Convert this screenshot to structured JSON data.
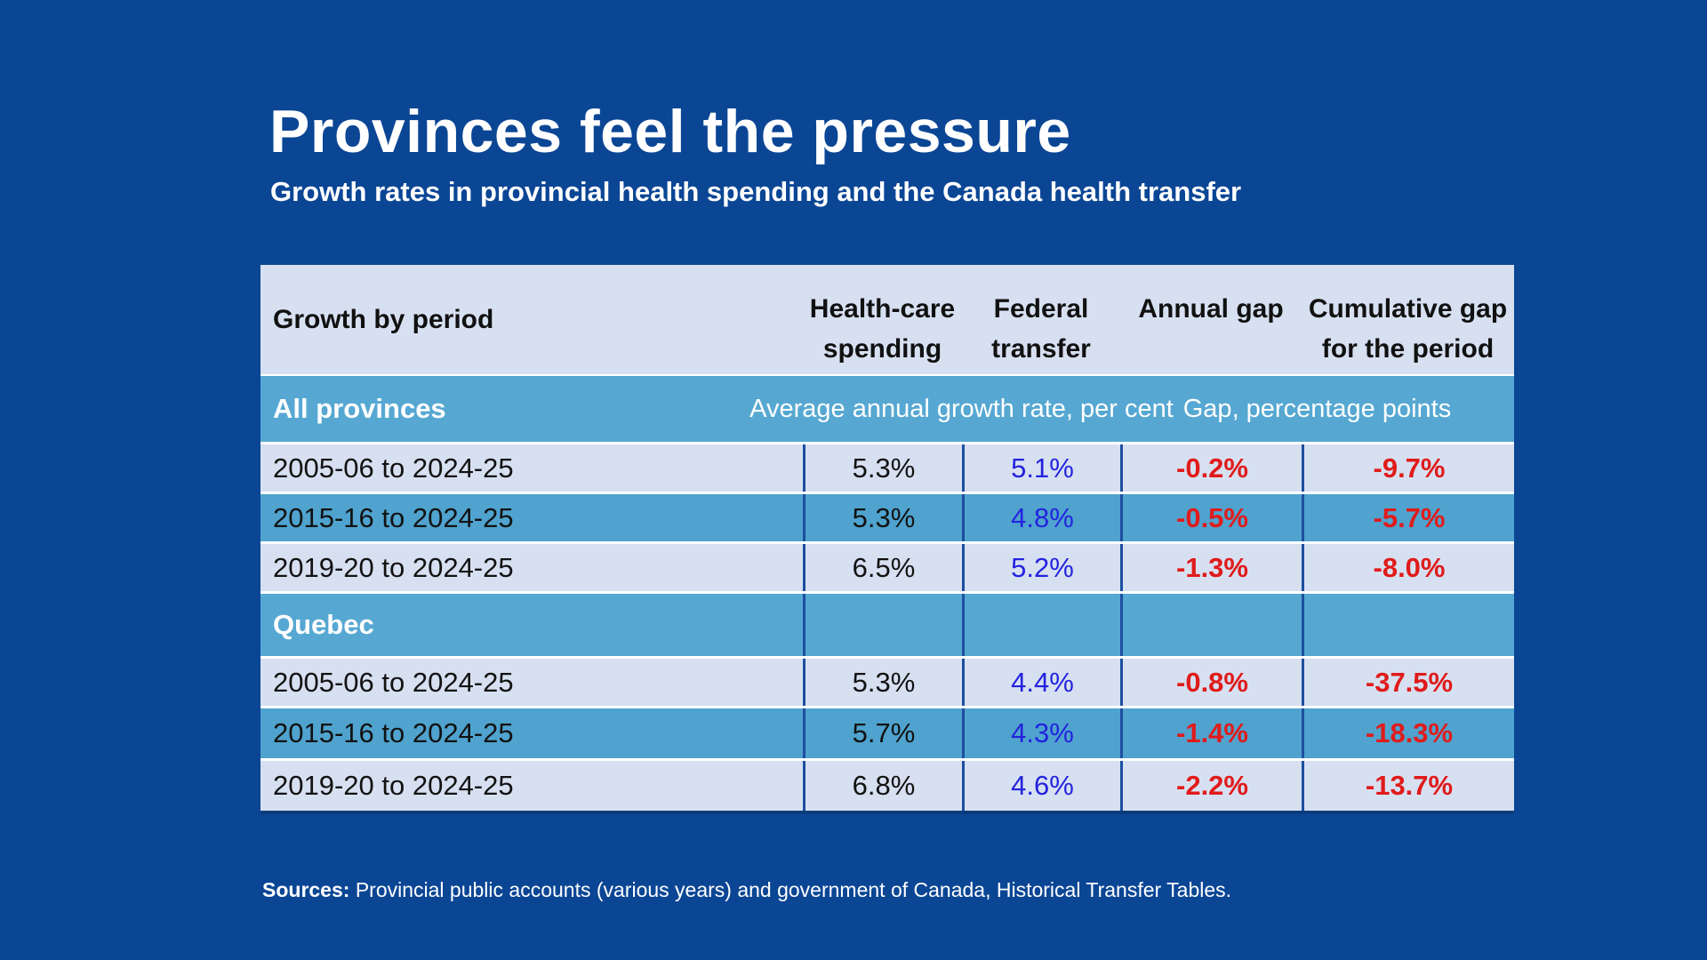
{
  "title": "Provinces feel the pressure",
  "subtitle": "Growth rates in provincial health spending and the Canada health transfer",
  "sources": {
    "label": "Sources:",
    "text": " Provincial public accounts (various years) and government of Canada, Historical Transfer Tables."
  },
  "colors": {
    "bg": "#0B4695",
    "lightRow": "#D7E0F1",
    "blueRow": "#4FA3CE",
    "band": "#56A8D2",
    "divider": "#1D4F9F",
    "textDark": "#121212",
    "valueBlue": "#2323DE",
    "valueRed": "#E01B1B",
    "white": "#FFFFFF"
  },
  "chart_data": {
    "type": "table",
    "title": "Provinces feel the pressure",
    "subtitle": "Growth rates in provincial health spending and the Canada health transfer",
    "columns": [
      "Growth by period",
      "Health-care spending",
      "Federal transfer",
      "Annual gap",
      "Cumulative gap for the period"
    ],
    "units": {
      "growth_columns": "Average annual growth rate, per cent",
      "gap_columns": "Gap, percentage points"
    },
    "groups": [
      {
        "label": "All provinces",
        "rows": [
          {
            "period": "2005-06 to 2024-25",
            "health_care_spending": 5.3,
            "federal_transfer": 5.1,
            "annual_gap": -0.2,
            "cumulative_gap": -9.7
          },
          {
            "period": "2015-16 to 2024-25",
            "health_care_spending": 5.3,
            "federal_transfer": 4.8,
            "annual_gap": -0.5,
            "cumulative_gap": -5.7
          },
          {
            "period": "2019-20 to 2024-25",
            "health_care_spending": 6.5,
            "federal_transfer": 5.2,
            "annual_gap": -1.3,
            "cumulative_gap": -8.0
          }
        ]
      },
      {
        "label": "Quebec",
        "rows": [
          {
            "period": "2005-06 to 2024-25",
            "health_care_spending": 5.3,
            "federal_transfer": 4.4,
            "annual_gap": -0.8,
            "cumulative_gap": -37.5
          },
          {
            "period": "2015-16 to 2024-25",
            "health_care_spending": 5.7,
            "federal_transfer": 4.3,
            "annual_gap": -1.4,
            "cumulative_gap": -18.3
          },
          {
            "period": "2019-20 to 2024-25",
            "health_care_spending": 6.8,
            "federal_transfer": 4.6,
            "annual_gap": -2.2,
            "cumulative_gap": -13.7
          }
        ]
      }
    ]
  },
  "table": {
    "header": [
      [
        "Growth by period"
      ],
      [
        "Health-care",
        "spending"
      ],
      [
        "Federal",
        "transfer"
      ],
      [
        "Annual gap"
      ],
      [
        "Cumulative gap",
        "for the period"
      ]
    ],
    "groups": [
      {
        "label": "All provinces",
        "sublabel_growth": "Average annual growth rate, per cent",
        "sublabel_gap": "Gap, percentage points",
        "rows": [
          {
            "period": "2005-06 to 2024-25",
            "spending": "5.3%",
            "transfer": "5.1%",
            "annual_gap": "-0.2%",
            "cumulative_gap": "-9.7%"
          },
          {
            "period": "2015-16 to 2024-25",
            "spending": "5.3%",
            "transfer": "4.8%",
            "annual_gap": "-0.5%",
            "cumulative_gap": "-5.7%"
          },
          {
            "period": "2019-20 to 2024-25",
            "spending": "6.5%",
            "transfer": "5.2%",
            "annual_gap": "-1.3%",
            "cumulative_gap": "-8.0%"
          }
        ]
      },
      {
        "label": "Quebec",
        "sublabel_growth": "",
        "sublabel_gap": "",
        "rows": [
          {
            "period": "2005-06 to 2024-25",
            "spending": "5.3%",
            "transfer": "4.4%",
            "annual_gap": "-0.8%",
            "cumulative_gap": "-37.5%"
          },
          {
            "period": "2015-16 to 2024-25",
            "spending": "5.7%",
            "transfer": "4.3%",
            "annual_gap": "-1.4%",
            "cumulative_gap": "-18.3%"
          },
          {
            "period": "2019-20 to 2024-25",
            "spending": "6.8%",
            "transfer": "4.6%",
            "annual_gap": "-2.2%",
            "cumulative_gap": "-13.7%"
          }
        ]
      }
    ]
  }
}
